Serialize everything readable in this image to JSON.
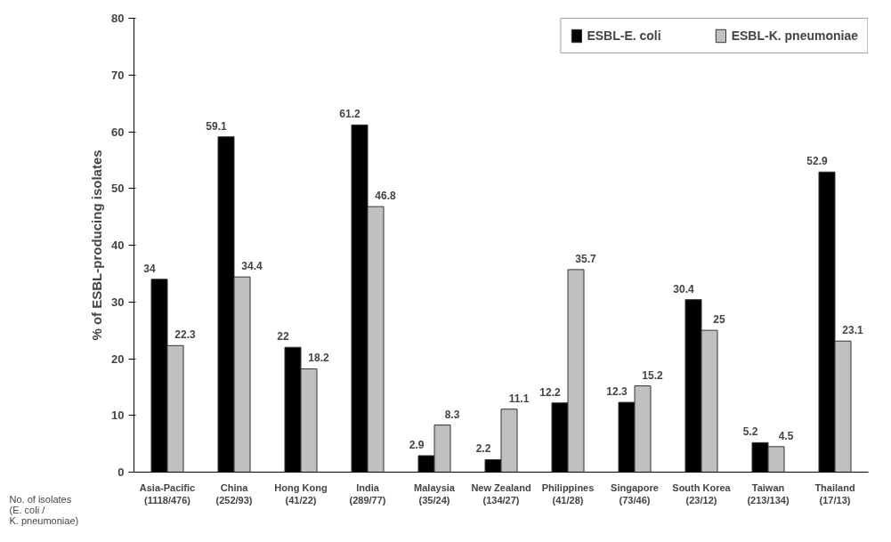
{
  "chart_data": {
    "type": "bar",
    "ylabel": "% of ESBL-producing isolates",
    "categories": [
      "Asia-Pacific\n(1118/476)",
      "China\n(252/93)",
      "Hong Kong\n(41/22)",
      "India\n(289/77)",
      "Malaysia\n(35/24)",
      "New Zealand\n(134/27)",
      "Philippines\n(41/28)",
      "Singapore\n(73/46)",
      "South Korea\n(23/12)",
      "Taiwan\n(213/134)",
      "Thailand\n(17/13)"
    ],
    "series": [
      {
        "name": "ESBL-E. coli",
        "color": "#000000",
        "values": [
          34,
          59.1,
          22,
          61.2,
          2.9,
          2.2,
          12.2,
          12.3,
          30.4,
          5.2,
          52.9
        ]
      },
      {
        "name": "ESBL-K. pneumoniae",
        "color": "#c0c0c0",
        "values": [
          22.3,
          34.4,
          18.2,
          46.8,
          8.3,
          11.1,
          35.7,
          15.2,
          25,
          4.5,
          23.1
        ]
      }
    ],
    "ylim": [
      0,
      80
    ],
    "yticks": [
      0,
      10,
      20,
      30,
      40,
      50,
      60,
      70,
      80
    ],
    "grid": false,
    "legend": "top",
    "data_labels": true,
    "annotations": [
      "No. of isolates\n(E. coli /\nK. pneumoniae)"
    ]
  }
}
